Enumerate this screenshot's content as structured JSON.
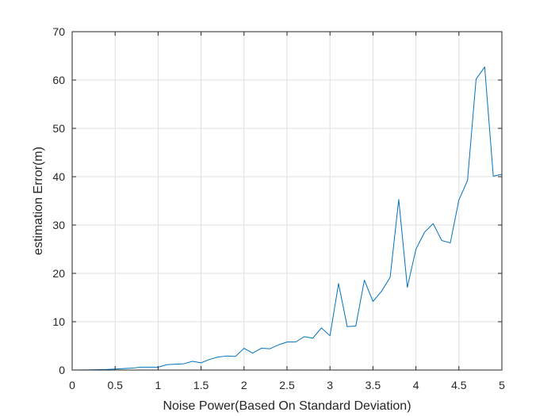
{
  "chart_data": {
    "type": "line",
    "title": "",
    "xlabel": "Noise Power(Based On Standard Deviation)",
    "ylabel": "estimation Error(m)",
    "xlim": [
      0,
      5
    ],
    "ylim": [
      0,
      70
    ],
    "xticks": [
      0,
      0.5,
      1,
      1.5,
      2,
      2.5,
      3,
      3.5,
      4,
      4.5,
      5
    ],
    "xtick_labels": [
      "0",
      "0.5",
      "1",
      "1.5",
      "2",
      "2.5",
      "3",
      "3.5",
      "4",
      "4.5",
      "5"
    ],
    "yticks": [
      0,
      10,
      20,
      30,
      40,
      50,
      60,
      70
    ],
    "ytick_labels": [
      "0",
      "10",
      "20",
      "30",
      "40",
      "50",
      "60",
      "70"
    ],
    "grid": true,
    "series": [
      {
        "color": "#0072bd",
        "x": [
          0,
          0.1,
          0.2,
          0.3,
          0.4,
          0.5,
          0.6,
          0.7,
          0.8,
          0.9,
          1.0,
          1.1,
          1.2,
          1.3,
          1.4,
          1.5,
          1.6,
          1.7,
          1.8,
          1.9,
          2.0,
          2.1,
          2.2,
          2.3,
          2.4,
          2.5,
          2.6,
          2.7,
          2.8,
          2.9,
          3.0,
          3.1,
          3.2,
          3.3,
          3.4,
          3.5,
          3.6,
          3.7,
          3.8,
          3.9,
          4.0,
          4.1,
          4.2,
          4.3,
          4.4,
          4.5,
          4.6,
          4.7,
          4.8,
          4.9,
          5.0
        ],
        "values": [
          0.0,
          0.02,
          0.05,
          0.08,
          0.12,
          0.2,
          0.3,
          0.4,
          0.6,
          0.6,
          0.6,
          1.1,
          1.2,
          1.3,
          1.8,
          1.5,
          2.2,
          2.7,
          2.9,
          2.8,
          4.5,
          3.5,
          4.5,
          4.4,
          5.2,
          5.8,
          5.8,
          6.9,
          6.6,
          8.7,
          7.1,
          17.9,
          9.0,
          9.1,
          18.6,
          14.2,
          16.3,
          19.2,
          35.3,
          17.1,
          25.0,
          28.5,
          30.3,
          26.8,
          26.3,
          35.2,
          39.2,
          60.2,
          62.7,
          40.1,
          40.5
        ]
      }
    ]
  }
}
